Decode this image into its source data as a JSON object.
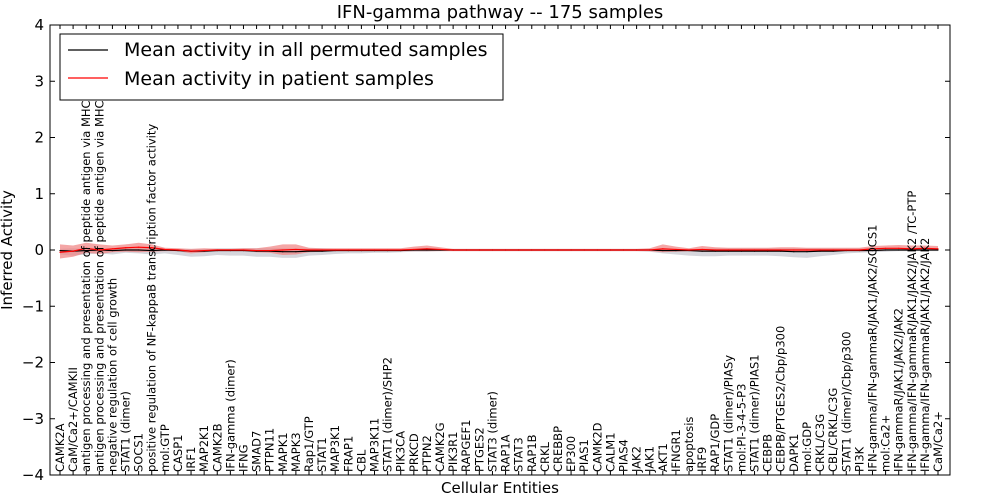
{
  "chart_data": {
    "type": "line",
    "title": "IFN-gamma pathway -- 175 samples",
    "xlabel": "Cellular Entities",
    "ylabel": "Inferred Activity",
    "ylim": [
      -4,
      4
    ],
    "yticks": [
      "−4",
      "−3",
      "−2",
      "−1",
      "0",
      "1",
      "2",
      "3",
      "4"
    ],
    "grid": false,
    "legend_position": "top-left",
    "categories": [
      "CAMK2A",
      "CaM/Ca2+/CAMKII",
      "antigen processing and presentation of peptide antigen via MHC class I",
      "antigen processing and presentation of peptide antigen via MHC class II",
      "negative regulation of cell growth",
      "STAT1 (dimer)",
      "SOCS1",
      "positive regulation of NF-kappaB transcription factor activity",
      "mol:GTP",
      "CASP1",
      "IRF1",
      "MAP2K1",
      "CAMK2B",
      "IFN-gamma (dimer)",
      "IFNG",
      "SMAD7",
      "PTPN11",
      "MAPK1",
      "MAPK3",
      "Rap1/GTP",
      "STAT1",
      "MAP3K1",
      "FRAP1",
      "CBL",
      "MAP3K11",
      "STAT1 (dimer)/SHP2",
      "PIK3CA",
      "PRKCD",
      "PTPN2",
      "CAMK2G",
      "PIK3R1",
      "RAPGEF1",
      "PTGES2",
      "STAT3 (dimer)",
      "RAP1A",
      "STAT3",
      "RAP1B",
      "CRKL",
      "CREBBP",
      "EP300",
      "PIAS1",
      "CAMK2D",
      "CALM1",
      "PIAS4",
      "JAK2",
      "JAK1",
      "AKT1",
      "IFNGR1",
      "apoptosis",
      "IRF9",
      "RAP1/GDP",
      "STAT1 (dimer)/PIASy",
      "mol:PI-3-4-5-P3",
      "STAT1 (dimer)/PIAS1",
      "CEBPB",
      "CEBPB/PTGES2/Cbp/p300",
      "DAPK1",
      "mol:GDP",
      "CRKL/C3G",
      "CBL/CRKL/C3G",
      "STAT1 (dimer)/Cbp/p300",
      "PI3K",
      "IFN-gamma/IFN-gammaR/JAK1/JAK2/SOCS1",
      "mol:Ca2+",
      "IFN-gammaR/JAK1/JAK2/JAK2",
      "IFN-gamma/IFN-gammaR/JAK1/JAK2/JAK2 /TC-PTP",
      "IFN-gamma/IFN-gammaR/JAK1/JAK2/JAK2",
      "CaM/Ca2+"
    ],
    "series": [
      {
        "name": "Mean activity in all permuted samples",
        "color": "#000000",
        "band_color": "#c8c8d0",
        "values": [
          -0.01,
          -0.02,
          -0.01,
          0.0,
          -0.01,
          0.0,
          0.0,
          -0.01,
          0.0,
          -0.01,
          -0.02,
          -0.02,
          -0.01,
          -0.01,
          -0.01,
          -0.02,
          -0.02,
          -0.03,
          -0.03,
          -0.02,
          -0.02,
          -0.01,
          -0.01,
          -0.01,
          -0.01,
          -0.01,
          -0.01,
          0.0,
          0.0,
          0.0,
          0.0,
          0.0,
          0.0,
          0.0,
          0.0,
          0.0,
          0.0,
          0.0,
          0.0,
          0.0,
          0.0,
          0.0,
          0.0,
          0.0,
          0.0,
          0.0,
          -0.01,
          -0.01,
          -0.01,
          -0.02,
          -0.02,
          -0.02,
          -0.02,
          -0.02,
          -0.02,
          -0.02,
          -0.03,
          -0.03,
          -0.02,
          -0.02,
          -0.01,
          -0.01,
          -0.01,
          0.0,
          0.0,
          0.0,
          0.0,
          0.0
        ],
        "band_upper": [
          0.02,
          0.03,
          0.02,
          0.03,
          0.02,
          0.03,
          0.03,
          0.04,
          0.02,
          0.02,
          0.02,
          0.02,
          0.03,
          0.03,
          0.03,
          0.03,
          0.03,
          0.03,
          0.03,
          0.03,
          0.03,
          0.02,
          0.02,
          0.02,
          0.02,
          0.02,
          0.02,
          0.02,
          0.02,
          0.02,
          0.02,
          0.02,
          0.02,
          0.02,
          0.02,
          0.02,
          0.02,
          0.02,
          0.02,
          0.02,
          0.02,
          0.02,
          0.02,
          0.02,
          0.02,
          0.02,
          0.02,
          0.02,
          0.02,
          0.02,
          0.03,
          0.03,
          0.03,
          0.03,
          0.03,
          0.03,
          0.03,
          0.03,
          0.03,
          0.03,
          0.03,
          0.03,
          0.03,
          0.02,
          0.02,
          0.02,
          0.02,
          0.02
        ],
        "band_lower": [
          -0.08,
          -0.1,
          -0.08,
          -0.06,
          -0.08,
          -0.05,
          -0.06,
          -0.08,
          -0.06,
          -0.09,
          -0.12,
          -0.11,
          -0.09,
          -0.1,
          -0.1,
          -0.12,
          -0.12,
          -0.14,
          -0.14,
          -0.1,
          -0.09,
          -0.07,
          -0.06,
          -0.06,
          -0.05,
          -0.05,
          -0.04,
          -0.03,
          -0.03,
          -0.02,
          -0.02,
          -0.02,
          -0.02,
          -0.02,
          -0.02,
          -0.02,
          -0.02,
          -0.02,
          -0.02,
          -0.02,
          -0.02,
          -0.02,
          -0.02,
          -0.02,
          -0.02,
          -0.03,
          -0.06,
          -0.08,
          -0.1,
          -0.11,
          -0.11,
          -0.1,
          -0.1,
          -0.1,
          -0.1,
          -0.11,
          -0.13,
          -0.14,
          -0.11,
          -0.09,
          -0.06,
          -0.05,
          -0.04,
          -0.03,
          -0.02,
          -0.02,
          -0.02,
          -0.02
        ]
      },
      {
        "name": "Mean activity in patient samples",
        "color": "#ff0000",
        "band_color": "#f08080",
        "values": [
          -0.04,
          -0.02,
          0.03,
          0.0,
          0.02,
          0.04,
          0.05,
          0.04,
          0.01,
          0.0,
          -0.02,
          -0.01,
          0.0,
          0.0,
          0.0,
          -0.01,
          -0.01,
          0.0,
          0.01,
          0.0,
          0.0,
          0.0,
          0.0,
          0.0,
          0.0,
          0.0,
          0.0,
          0.01,
          0.02,
          0.01,
          0.0,
          0.0,
          0.0,
          0.0,
          0.0,
          0.0,
          0.0,
          0.0,
          0.0,
          0.0,
          0.0,
          0.0,
          0.0,
          0.0,
          0.0,
          0.0,
          0.02,
          0.01,
          0.0,
          0.01,
          0.0,
          0.0,
          0.0,
          0.0,
          0.0,
          0.0,
          0.0,
          0.0,
          0.0,
          0.0,
          0.0,
          0.0,
          0.02,
          0.03,
          0.03,
          0.02,
          0.03,
          0.02
        ],
        "band_upper": [
          0.1,
          0.08,
          0.13,
          0.1,
          0.08,
          0.1,
          0.13,
          0.1,
          0.04,
          0.03,
          0.02,
          0.03,
          0.02,
          0.02,
          0.03,
          0.03,
          0.06,
          0.1,
          0.1,
          0.04,
          0.03,
          0.03,
          0.03,
          0.03,
          0.03,
          0.03,
          0.03,
          0.06,
          0.08,
          0.05,
          0.02,
          0.02,
          0.02,
          0.02,
          0.02,
          0.02,
          0.02,
          0.02,
          0.02,
          0.02,
          0.02,
          0.02,
          0.02,
          0.02,
          0.02,
          0.03,
          0.1,
          0.06,
          0.03,
          0.07,
          0.05,
          0.04,
          0.04,
          0.04,
          0.04,
          0.05,
          0.05,
          0.04,
          0.04,
          0.04,
          0.04,
          0.04,
          0.07,
          0.08,
          0.09,
          0.08,
          0.08,
          0.07
        ],
        "band_lower": [
          -0.15,
          -0.12,
          -0.05,
          -0.07,
          -0.04,
          -0.03,
          -0.04,
          -0.03,
          -0.02,
          -0.02,
          -0.06,
          -0.04,
          -0.02,
          -0.02,
          -0.02,
          -0.04,
          -0.05,
          -0.09,
          -0.08,
          -0.04,
          -0.03,
          -0.02,
          -0.02,
          -0.02,
          -0.02,
          -0.02,
          -0.02,
          -0.02,
          -0.02,
          -0.02,
          -0.02,
          -0.02,
          -0.02,
          -0.02,
          -0.02,
          -0.02,
          -0.02,
          -0.02,
          -0.02,
          -0.02,
          -0.02,
          -0.02,
          -0.02,
          -0.02,
          -0.02,
          -0.02,
          -0.04,
          -0.03,
          -0.02,
          -0.03,
          -0.03,
          -0.03,
          -0.03,
          -0.03,
          -0.03,
          -0.03,
          -0.03,
          -0.03,
          -0.03,
          -0.03,
          -0.02,
          -0.02,
          -0.02,
          -0.01,
          -0.01,
          -0.01,
          -0.01,
          -0.01
        ]
      }
    ]
  }
}
